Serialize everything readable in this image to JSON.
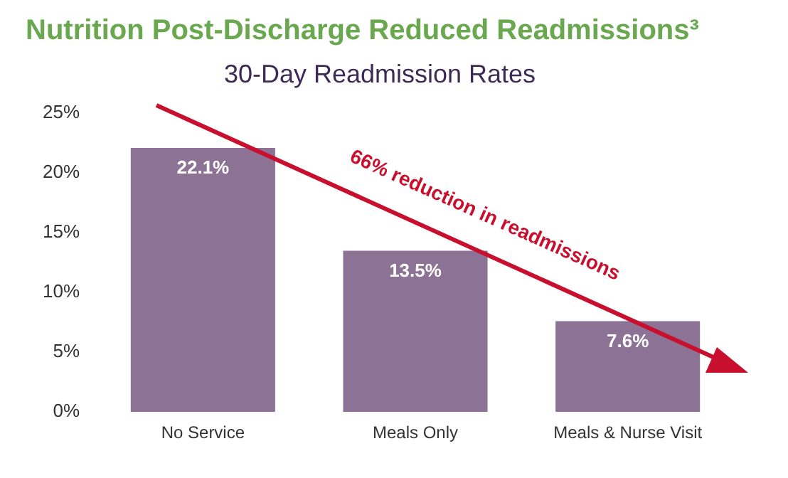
{
  "chart_data": {
    "type": "bar",
    "title": "Nutrition Post-Discharge Reduced Readmissions³",
    "subtitle": "30-Day Readmission Rates",
    "categories": [
      "No Service",
      "Meals Only",
      "Meals & Nurse Visit"
    ],
    "values": [
      22.1,
      13.5,
      7.6
    ],
    "color": "#8c7396",
    "value_labels": [
      "22.1%",
      "13.5%",
      "7.6%"
    ],
    "ylim": [
      0,
      25
    ],
    "yticks": [
      {
        "value": 0,
        "label": "0%"
      },
      {
        "value": 5,
        "label": "5%"
      },
      {
        "value": 10,
        "label": "10%"
      },
      {
        "value": 15,
        "label": "15%"
      },
      {
        "value": 20,
        "label": "20%"
      },
      {
        "value": 25,
        "label": "25%"
      }
    ],
    "grid": false,
    "legend": false,
    "annotations": [
      "66% reduction in readmissions"
    ]
  }
}
